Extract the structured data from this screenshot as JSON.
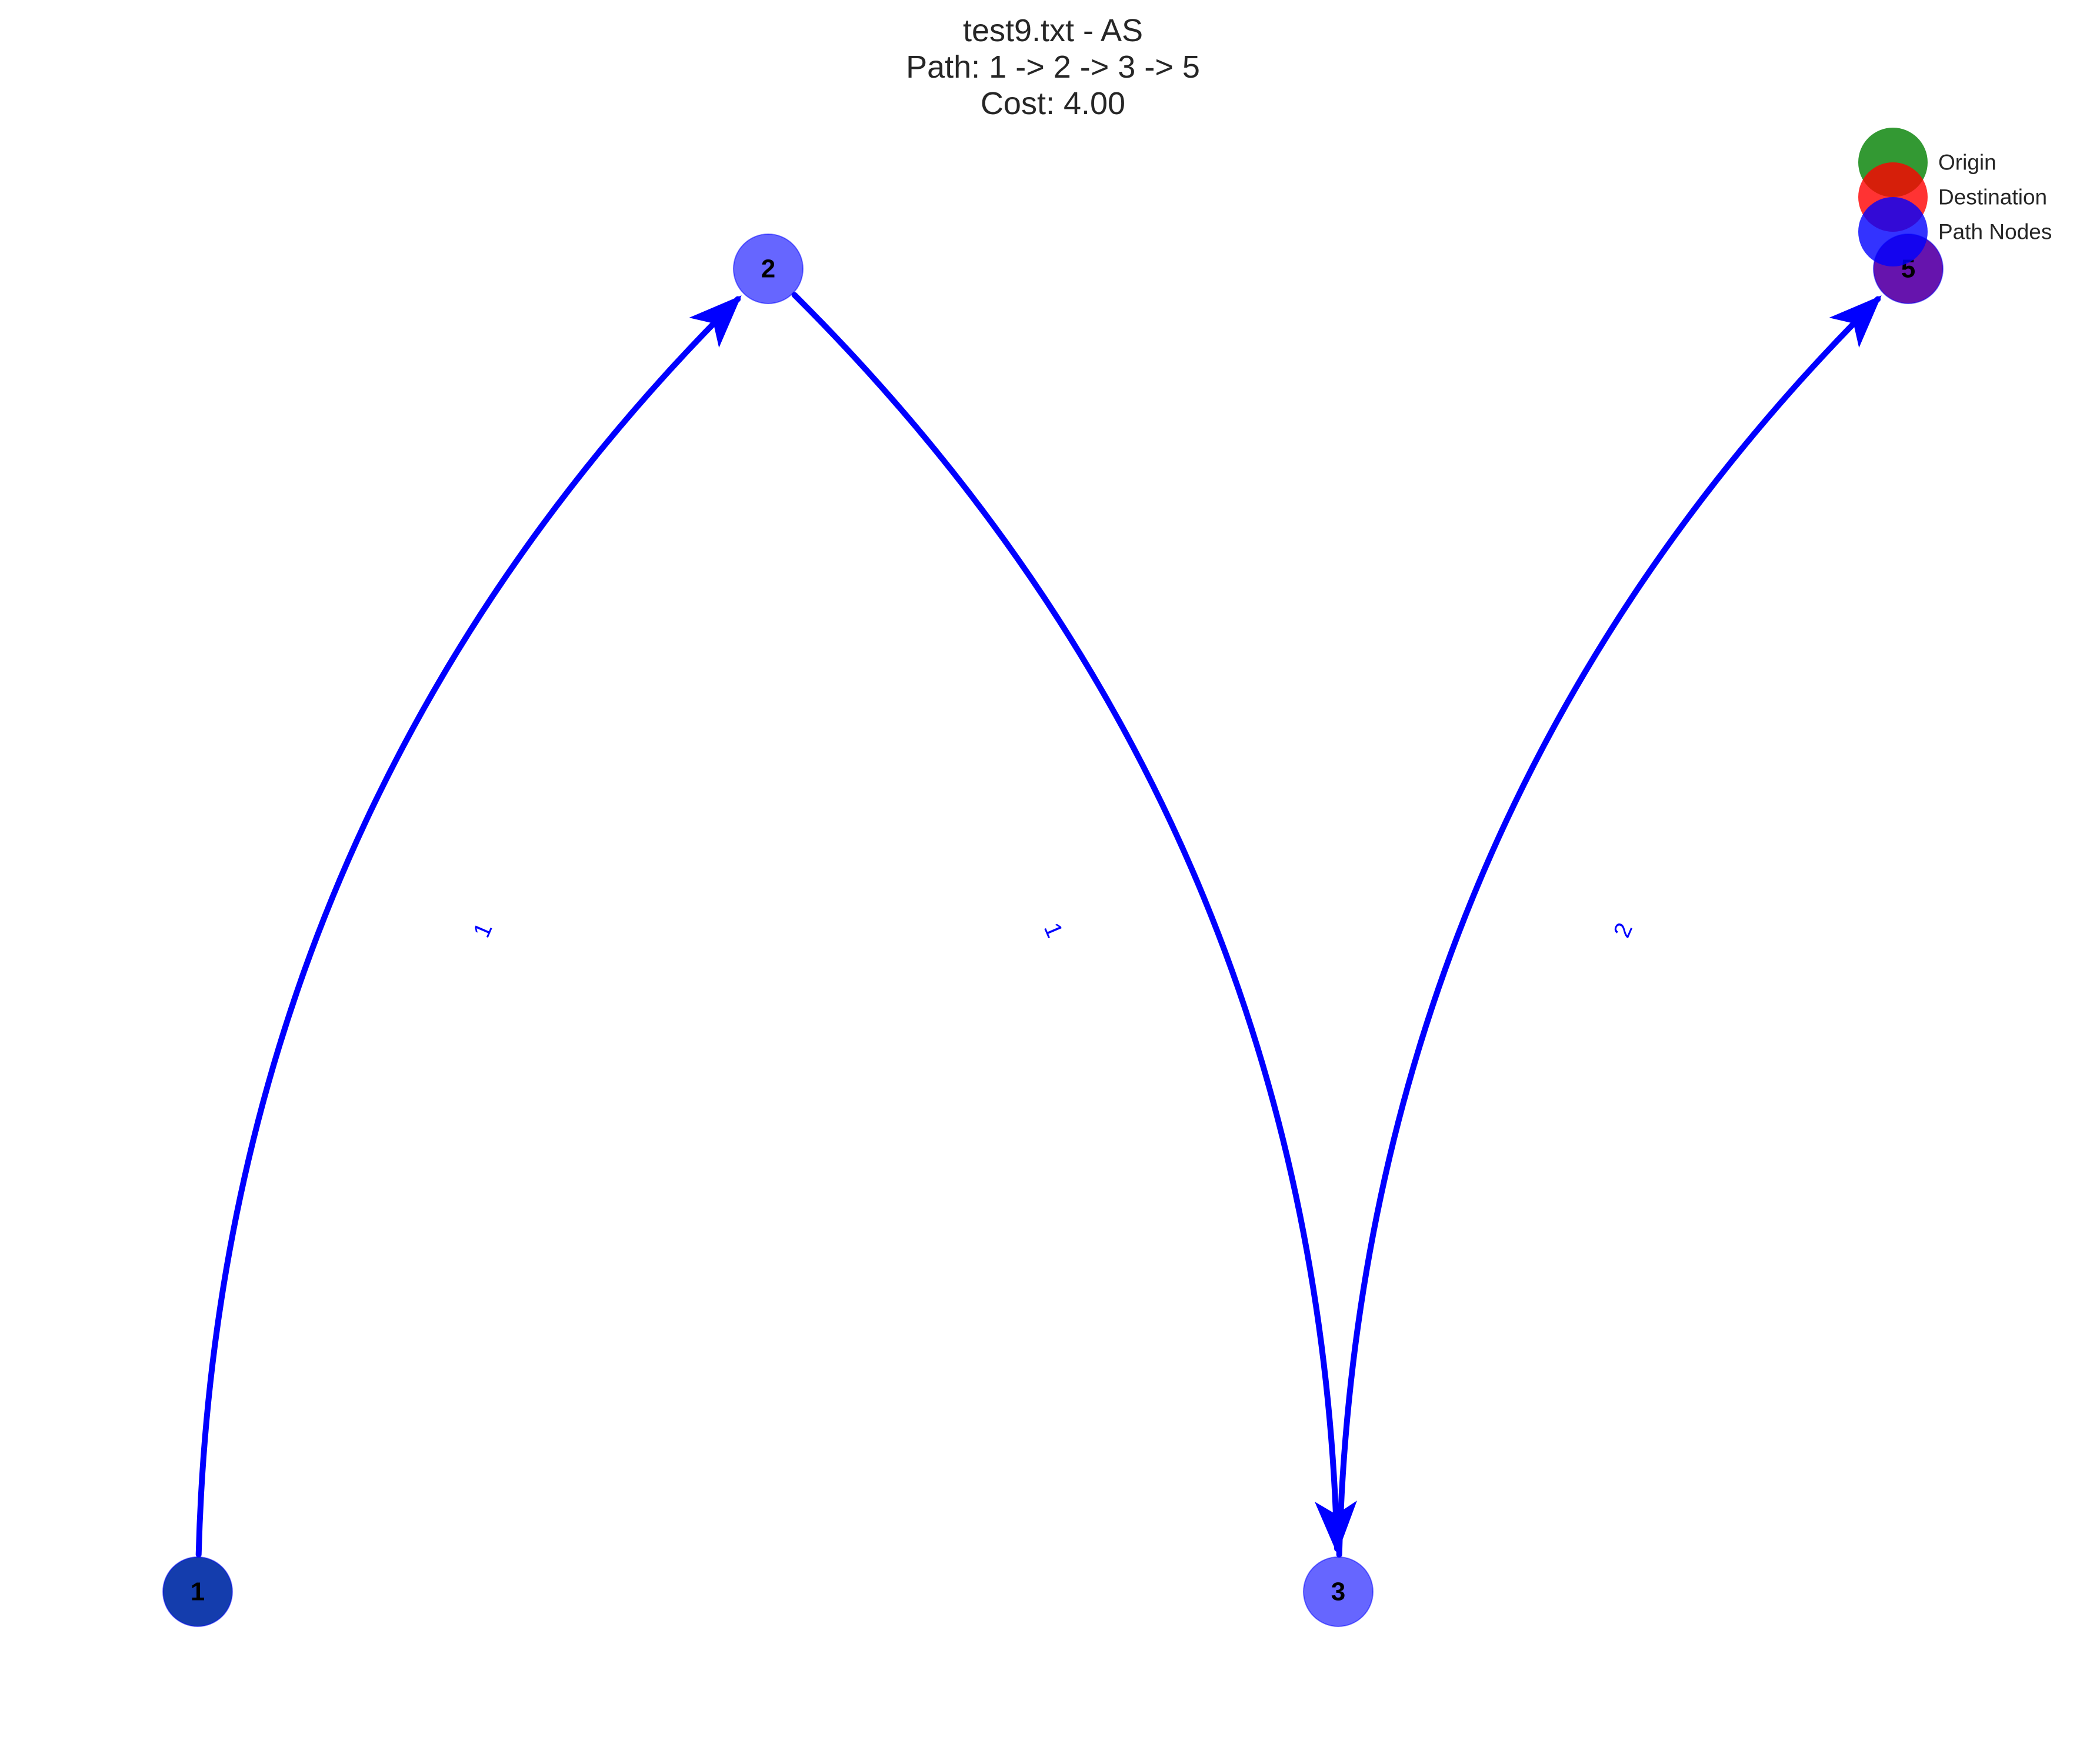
{
  "title": {
    "line1": "test9.txt - AS",
    "line2": "Path: 1 -> 2 -> 3 -> 5",
    "line3": "Cost: 4.00"
  },
  "colors": {
    "origin": "#008000",
    "destination": "#ff0000",
    "path_node": "#0000ff",
    "edge": "#0000ff",
    "edge_label": "#0000ff"
  },
  "legend": [
    {
      "label": "Origin",
      "color": "#008000"
    },
    {
      "label": "Destination",
      "color": "#ff0000"
    },
    {
      "label": "Path Nodes",
      "color": "#0000ff"
    }
  ],
  "nodes": [
    {
      "id": "1",
      "label": "1",
      "role": "origin+path"
    },
    {
      "id": "2",
      "label": "2",
      "role": "path"
    },
    {
      "id": "3",
      "label": "3",
      "role": "path"
    },
    {
      "id": "5",
      "label": "5",
      "role": "destination+path"
    }
  ],
  "edges": [
    {
      "from": "1",
      "to": "2",
      "weight": "1"
    },
    {
      "from": "2",
      "to": "3",
      "weight": "1"
    },
    {
      "from": "3",
      "to": "5",
      "weight": "2"
    }
  ]
}
